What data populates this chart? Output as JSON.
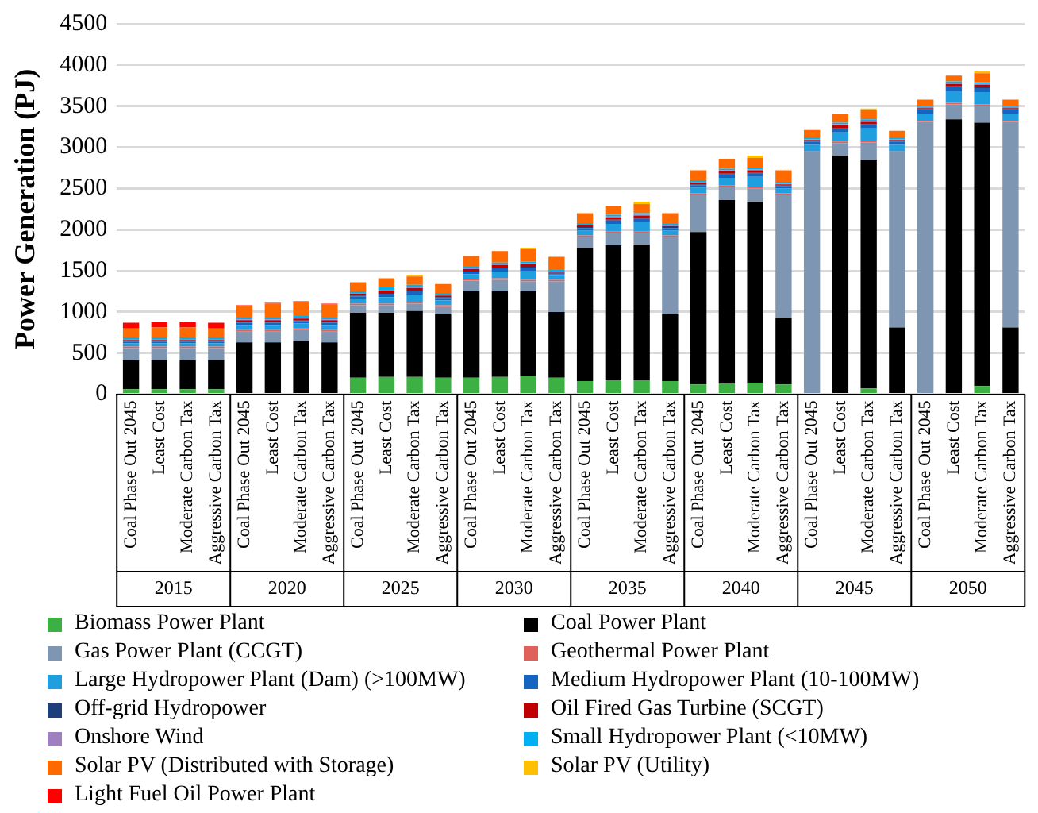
{
  "chart_data": {
    "type": "bar",
    "stacked": true,
    "ylabel": "Power Generation (PJ)",
    "categories": [
      "Coal Phase Out 2045",
      "Least Cost",
      "Moderate Carbon Tax",
      "Aggressive Carbon Tax",
      "Coal Phase Out 2045",
      "Least Cost",
      "Moderate Carbon Tax",
      "Aggressive Carbon Tax",
      "Coal Phase Out 2045",
      "Least Cost",
      "Moderate Carbon Tax",
      "Aggressive Carbon Tax",
      "Coal Phase Out 2045",
      "Least Cost",
      "Moderate Carbon Tax",
      "Aggressive Carbon Tax",
      "Coal Phase Out 2045",
      "Least Cost",
      "Moderate Carbon Tax",
      "Aggressive Carbon Tax",
      "Coal Phase Out 2045",
      "Least Cost",
      "Moderate Carbon Tax",
      "Aggressive Carbon Tax",
      "Coal Phase Out 2045",
      "Least Cost",
      "Moderate Carbon Tax",
      "Aggressive Carbon Tax",
      "Coal Phase Out 2045",
      "Least Cost",
      "Moderate Carbon Tax",
      "Aggressive Carbon Tax"
    ],
    "annotations": [
      "2015",
      "2020",
      "2025",
      "2030",
      "2035",
      "2040",
      "2045",
      "2050"
    ],
    "ylim": [
      0,
      4500
    ],
    "yticks": [
      0,
      500,
      1000,
      1500,
      2000,
      2500,
      3000,
      3500,
      4000,
      4500
    ],
    "grid": "y",
    "legend": "bottom",
    "series": [
      {
        "name": "Biomass Power Plant",
        "color": "#3cb043",
        "values": [
          60,
          60,
          60,
          60,
          null,
          null,
          null,
          null,
          200,
          210,
          210,
          200,
          200,
          210,
          220,
          200,
          160,
          170,
          170,
          160,
          120,
          130,
          140,
          120,
          0,
          0,
          70,
          0,
          0,
          0,
          100,
          0
        ]
      },
      {
        "name": "Coal Power Plant",
        "color": "#000000",
        "values": [
          350,
          350,
          350,
          350,
          630,
          630,
          650,
          630,
          790,
          780,
          800,
          770,
          1050,
          1040,
          1030,
          800,
          1620,
          1640,
          1650,
          810,
          1850,
          2230,
          2200,
          810,
          0,
          2900,
          2780,
          810,
          0,
          3340,
          3200,
          810
        ]
      },
      {
        "name": "Gas Power Plant (CCGT)",
        "color": "#7f96b2",
        "values": [
          150,
          150,
          150,
          150,
          130,
          130,
          130,
          130,
          90,
          90,
          90,
          90,
          130,
          140,
          120,
          370,
          130,
          150,
          140,
          940,
          450,
          160,
          160,
          1490,
          2940,
          150,
          210,
          2130,
          3310,
          180,
          200,
          2500
        ]
      },
      {
        "name": "Geothermal Power Plant",
        "color": "#e0605a",
        "values": [
          20,
          20,
          20,
          20,
          20,
          20,
          20,
          20,
          20,
          20,
          20,
          20,
          20,
          20,
          20,
          20,
          20,
          20,
          20,
          20,
          20,
          20,
          20,
          20,
          10,
          20,
          20,
          10,
          10,
          20,
          20,
          10
        ]
      },
      {
        "name": "Large Hydropower Plant (Dam) (>100MW)",
        "color": "#1f9ee0",
        "values": [
          40,
          40,
          40,
          40,
          60,
          60,
          60,
          60,
          60,
          80,
          90,
          60,
          60,
          80,
          110,
          50,
          60,
          90,
          110,
          60,
          70,
          90,
          120,
          60,
          80,
          110,
          150,
          80,
          90,
          140,
          150,
          90
        ]
      },
      {
        "name": "Medium Hydropower Plant (10-100MW)",
        "color": "#1565c0",
        "values": [
          20,
          20,
          20,
          20,
          30,
          30,
          30,
          30,
          30,
          40,
          40,
          30,
          30,
          40,
          40,
          20,
          30,
          40,
          40,
          30,
          30,
          40,
          40,
          30,
          40,
          40,
          40,
          40,
          50,
          50,
          50,
          50
        ]
      },
      {
        "name": "Off-grid Hydropower",
        "color": "#1f3f7a",
        "values": [
          10,
          10,
          10,
          10,
          10,
          10,
          10,
          10,
          10,
          10,
          10,
          10,
          10,
          10,
          10,
          10,
          10,
          10,
          10,
          10,
          10,
          10,
          10,
          10,
          10,
          10,
          10,
          10,
          10,
          10,
          10,
          10
        ]
      },
      {
        "name": "Oil Fired Gas Turbine (SCGT)",
        "color": "#c00000",
        "values": [
          10,
          10,
          10,
          10,
          20,
          20,
          20,
          20,
          20,
          30,
          30,
          20,
          20,
          30,
          30,
          10,
          20,
          30,
          30,
          10,
          20,
          30,
          30,
          10,
          10,
          40,
          30,
          10,
          10,
          30,
          30,
          10
        ]
      },
      {
        "name": "Onshore Wind",
        "color": "#9e7fc0",
        "values": [
          10,
          10,
          10,
          10,
          10,
          10,
          10,
          10,
          10,
          10,
          10,
          10,
          10,
          10,
          10,
          10,
          10,
          10,
          10,
          10,
          10,
          10,
          10,
          10,
          10,
          10,
          10,
          10,
          10,
          10,
          10,
          10
        ]
      },
      {
        "name": "Small Hydropower Plant (<10MW)",
        "color": "#00b0f0",
        "values": [
          20,
          20,
          20,
          20,
          20,
          20,
          20,
          20,
          20,
          30,
          30,
          20,
          20,
          20,
          20,
          20,
          20,
          20,
          20,
          20,
          20,
          20,
          20,
          20,
          10,
          20,
          20,
          10,
          10,
          20,
          20,
          10
        ]
      },
      {
        "name": "Solar PV (Distributed with Storage)",
        "color": "#ff6a00",
        "values": [
          110,
          120,
          120,
          110,
          140,
          170,
          170,
          160,
          110,
          110,
          100,
          110,
          130,
          140,
          150,
          160,
          120,
          110,
          110,
          130,
          120,
          120,
          120,
          140,
          100,
          110,
          110,
          90,
          80,
          70,
          110,
          80
        ]
      },
      {
        "name": "Solar PV (Utility)",
        "color": "#ffc000",
        "values": [
          0,
          0,
          0,
          0,
          0,
          0,
          0,
          0,
          0,
          0,
          20,
          0,
          0,
          0,
          20,
          0,
          0,
          0,
          30,
          0,
          0,
          0,
          30,
          0,
          0,
          0,
          20,
          0,
          0,
          0,
          30,
          0
        ]
      },
      {
        "name": "Light Fuel Oil Power Plant",
        "color": "#ff0000",
        "values": [
          70,
          70,
          70,
          70,
          10,
          10,
          10,
          10,
          0,
          0,
          0,
          0,
          0,
          0,
          0,
          0,
          0,
          0,
          0,
          0,
          0,
          0,
          0,
          0,
          0,
          0,
          0,
          0,
          0,
          0,
          0,
          0
        ]
      }
    ]
  }
}
